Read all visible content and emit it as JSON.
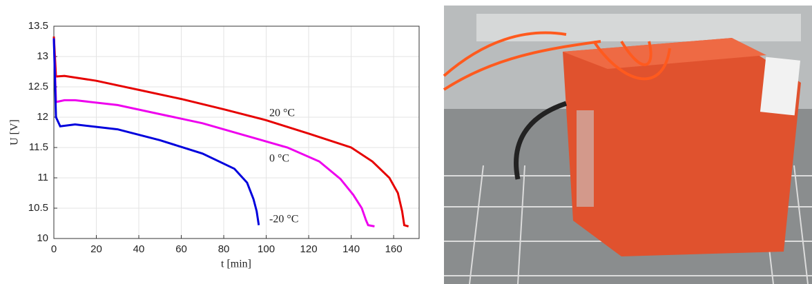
{
  "chart_data": {
    "type": "line",
    "xlabel": "t [min]",
    "ylabel": "U [V]",
    "xlim": [
      0,
      172
    ],
    "xticks": [
      0,
      20,
      40,
      60,
      80,
      100,
      120,
      140,
      160
    ],
    "ylim": [
      10,
      13.5
    ],
    "yticks": [
      10,
      10.5,
      11,
      11.5,
      12,
      12.5,
      13,
      13.5
    ],
    "grid": true,
    "annotations": [
      "20 °C",
      "0 °C",
      "-20 °C"
    ],
    "series": [
      {
        "name": "20 °C",
        "color": "#e60000",
        "x": [
          0,
          1,
          5,
          20,
          40,
          60,
          80,
          100,
          120,
          140,
          150,
          158,
          162,
          164,
          165,
          167
        ],
        "values": [
          13.33,
          12.67,
          12.68,
          12.6,
          12.45,
          12.3,
          12.13,
          11.95,
          11.73,
          11.5,
          11.27,
          11.0,
          10.75,
          10.45,
          10.22,
          10.2
        ]
      },
      {
        "name": "0 °C",
        "color": "#ee00ee",
        "x": [
          0,
          1,
          5,
          10,
          30,
          50,
          70,
          90,
          110,
          125,
          135,
          141,
          145,
          147,
          148,
          151
        ],
        "values": [
          13.3,
          12.25,
          12.28,
          12.28,
          12.2,
          12.05,
          11.9,
          11.7,
          11.5,
          11.27,
          10.98,
          10.72,
          10.5,
          10.3,
          10.22,
          10.2
        ]
      },
      {
        "name": "-20 °C",
        "color": "#0000dd",
        "x": [
          0,
          1,
          3,
          10,
          30,
          50,
          70,
          85,
          91,
          94,
          95.5,
          96.5
        ],
        "values": [
          13.3,
          12.0,
          11.85,
          11.88,
          11.8,
          11.62,
          11.4,
          11.15,
          10.92,
          10.65,
          10.45,
          10.22
        ]
      }
    ]
  }
}
